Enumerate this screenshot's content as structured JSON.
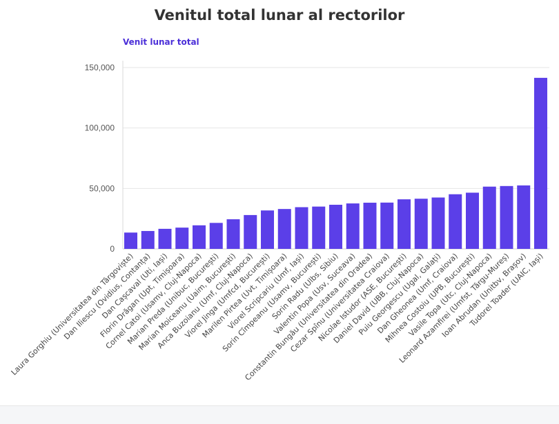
{
  "colors": {
    "bar": "#5b3fe8",
    "axis_title": "#4b2fd8",
    "grid": "#e6e6e6",
    "text": "#333333"
  },
  "chart_data": {
    "type": "bar",
    "title": "Venitul total lunar al rectorilor",
    "ylabel": "Venit lunar total",
    "xlabel": "",
    "ylim": [
      0,
      150000
    ],
    "yticks": [
      0,
      50000,
      100000,
      150000
    ],
    "ytick_labels": [
      "0",
      "50,000",
      "100,000",
      "150,000"
    ],
    "grid": true,
    "categories": [
      "Laura Gorghiu (Universitatea din Târgoviște)",
      "Dan Iliescu (Ovidius, Contanța)",
      "Dan Cașcaval (Uti, Iași)",
      "Florin Drăgan (Upt, Timișoara)",
      "Cornel Catoi (Usamv, Cluj-Napoca)",
      "Marian Preda (Unibuc, București)",
      "Marian Moiceanu (Uaim, București)",
      "Anca Buzoianu (Umf, Cluj-Napoca)",
      "Viorel Jinga (Umfcd, București)",
      "Marilen Pirtea (Uvt, Timișoara)",
      "Viorel Scripcariu (Umf, Iași)",
      "Sorin Cîmpeanu (Usamv, București)",
      "Sorin Radu (Ulbs, Sibiu)",
      "Valentin Popa (Usv, Suceava)",
      "Constantin Bungău (Universitatea din Oradea)",
      "Cezar Spînu (Universitatea Craiova)",
      "Nicolae Istudor (ASE, București)",
      "Daniel David (UBB, Cluj-Napoca)",
      "Puiu Georgescu (Ugal, Galați)",
      "Dan Gheonea (Umf, Craiova)",
      "Mihnea Costoiu (UPB, București)",
      "Vasile Topa (Utc, Cluj-Napoca)",
      "Leonard Azamfirei (Umfst, Târgu-Mureș)",
      "Ioan Abrudan (Unitbv, Brașov)",
      "Tudorel Toader (UAIC, Iași)"
    ],
    "values": [
      13500,
      14800,
      16600,
      17600,
      19500,
      21500,
      24500,
      28000,
      31800,
      33000,
      34500,
      35000,
      36500,
      37600,
      38200,
      38300,
      41000,
      41500,
      42500,
      45200,
      46500,
      51500,
      52000,
      52500,
      141500
    ]
  }
}
